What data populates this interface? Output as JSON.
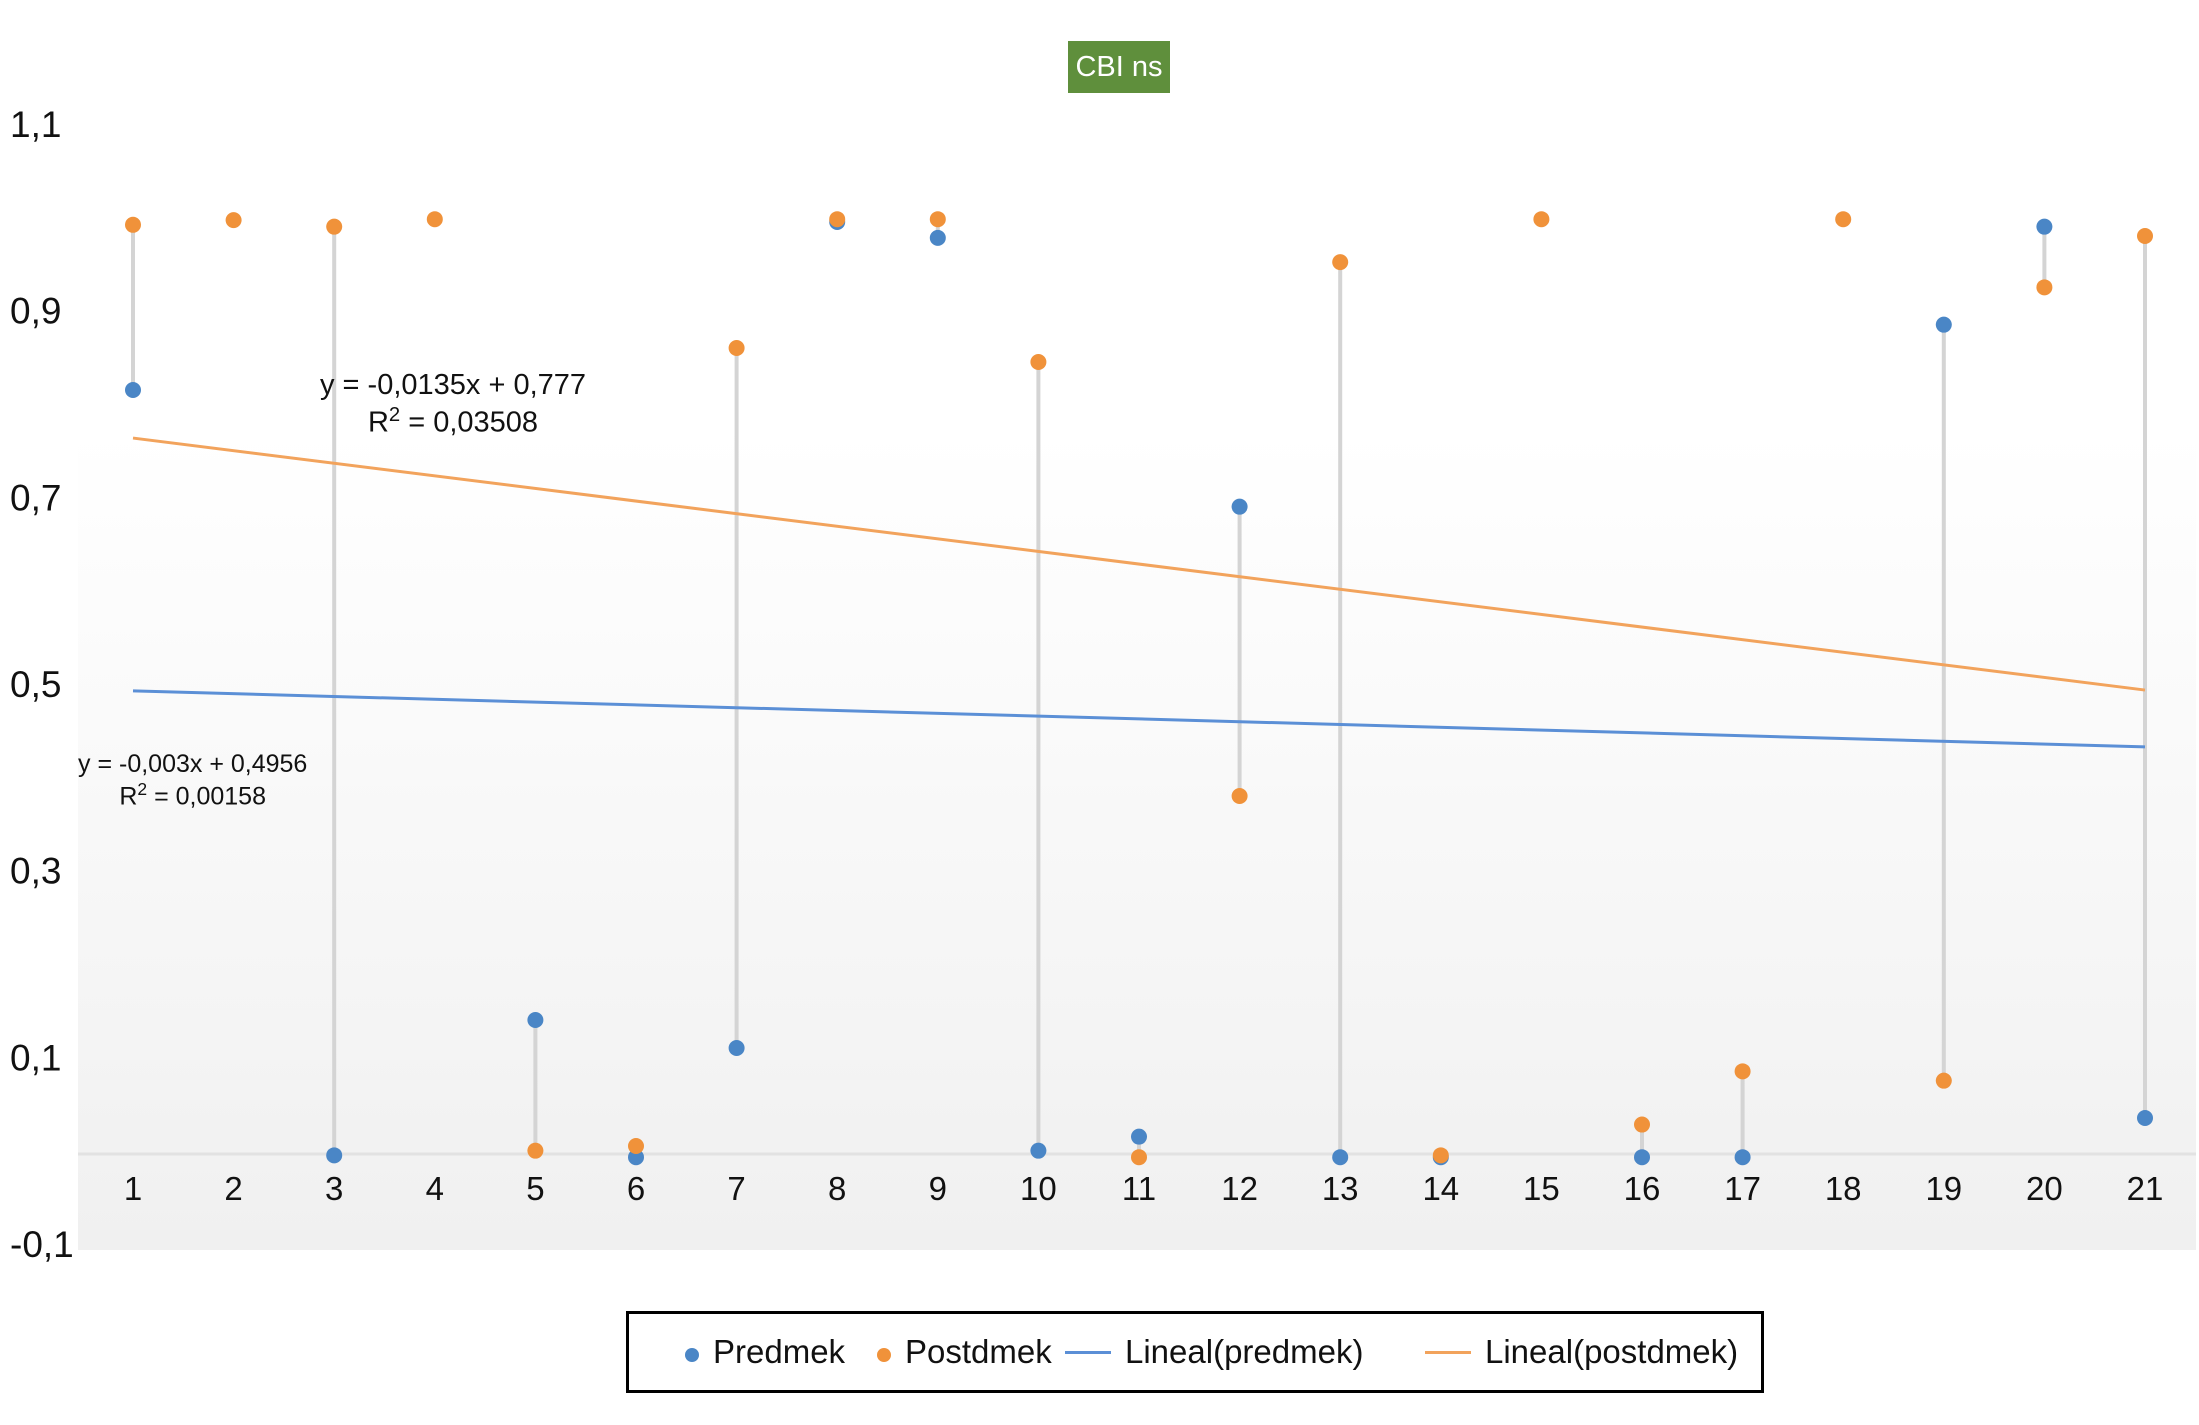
{
  "chart_data": {
    "type": "scatter",
    "title": "CBI ns",
    "xlabel": "",
    "ylabel": "",
    "x": [
      1,
      2,
      3,
      4,
      5,
      6,
      7,
      8,
      9,
      10,
      11,
      12,
      13,
      14,
      15,
      16,
      17,
      18,
      19,
      20,
      21
    ],
    "x_tick_labels": [
      "1",
      "2",
      "3",
      "4",
      "5",
      "6",
      "7",
      "8",
      "9",
      "10",
      "11",
      "12",
      "13",
      "14",
      "15",
      "16",
      "17",
      "18",
      "19",
      "20",
      "21"
    ],
    "y_tick_labels": [
      "1,1",
      "0,9",
      "0,7",
      "0,5",
      "0,3",
      "0,1",
      "-0,1"
    ],
    "y_ticks": [
      1.1,
      0.9,
      0.7,
      0.5,
      0.3,
      0.1,
      -0.1
    ],
    "ylim": [
      -0.1,
      1.1
    ],
    "series": [
      {
        "name": "Predmek",
        "kind": "points",
        "color": "#4a86c6",
        "values": [
          0.815,
          null,
          -0.005,
          null,
          0.14,
          -0.007,
          0.11,
          0.995,
          0.978,
          0.0,
          0.015,
          0.69,
          -0.007,
          -0.007,
          null,
          -0.007,
          -0.007,
          null,
          0.885,
          0.99,
          0.035
        ]
      },
      {
        "name": "Postdmek",
        "kind": "points",
        "color": "#f0923a",
        "values": [
          0.992,
          0.997,
          0.99,
          0.998,
          0.0,
          0.005,
          0.86,
          0.998,
          0.998,
          0.845,
          -0.007,
          0.38,
          0.952,
          -0.005,
          0.998,
          0.028,
          0.085,
          0.998,
          0.075,
          0.925,
          0.98
        ]
      },
      {
        "name": "Lineal(predmek)",
        "kind": "trend",
        "color": "#5b8fd6",
        "slope": -0.003,
        "intercept": 0.4956
      },
      {
        "name": "Lineal(postdmek)",
        "kind": "trend",
        "color": "#f2a35c",
        "slope": -0.0135,
        "intercept": 0.777
      }
    ],
    "annotations": {
      "post_equation": "y = -0,0135x + 0,777",
      "post_r2_label": "R",
      "post_r2_exp": "2",
      "post_r2_value": " = 0,03508",
      "pre_equation": "y = -0,003x + 0,4956",
      "pre_r2_label": "R",
      "pre_r2_exp": "2",
      "pre_r2_value": " = 0,00158"
    },
    "grid": false,
    "legend_position": "bottom"
  },
  "legend": {
    "predmek": "Predmek",
    "postdmek": "Postdmek",
    "lineal_predmek": "Lineal(predmek)",
    "lineal_postdmek": "Lineal(postdmek)"
  },
  "colors": {
    "predmek": "#4a86c6",
    "postdmek": "#f0923a",
    "lineal_predmek": "#5b8fd6",
    "lineal_postdmek": "#f2a35c",
    "title_bg": "#5f8f3c",
    "connector": "#d4d4d4"
  }
}
